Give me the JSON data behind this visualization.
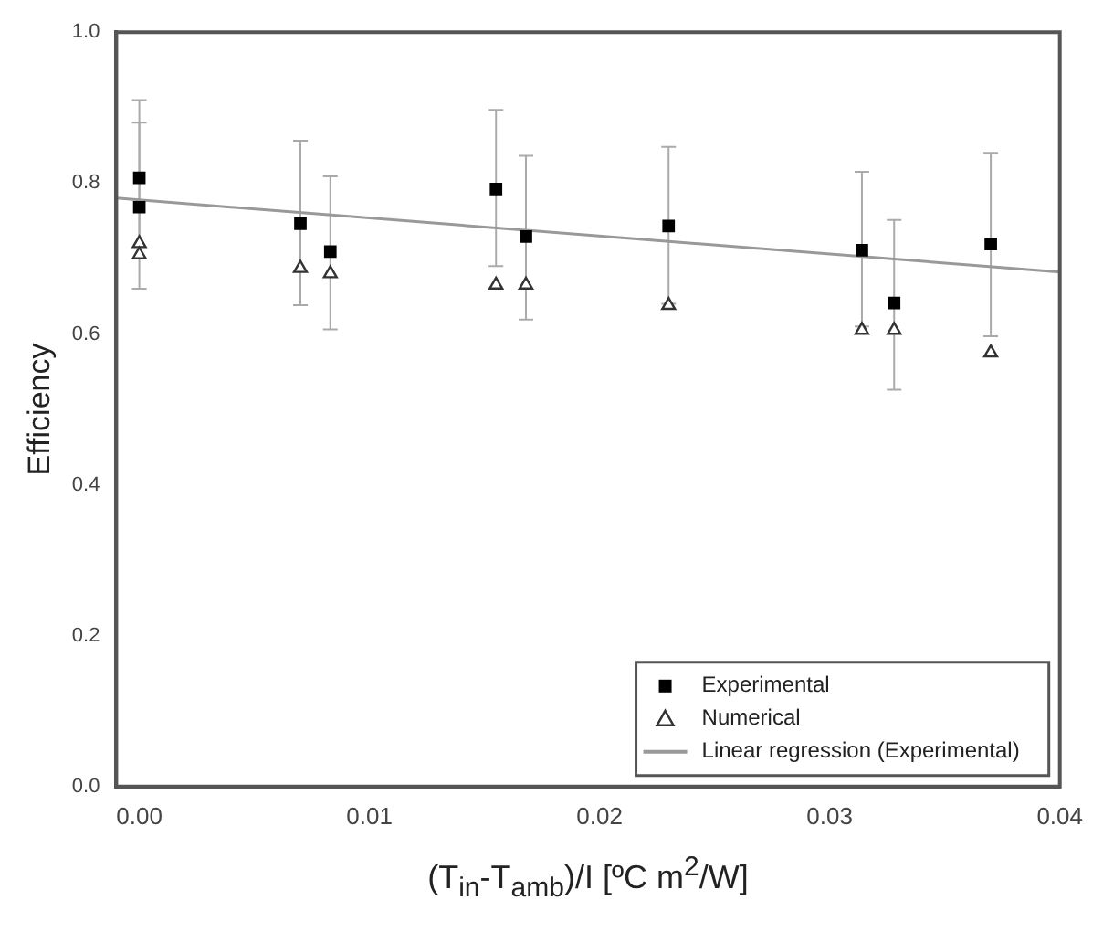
{
  "chart_data": {
    "type": "scatter",
    "xlabel": "(T$_{in}$-T$_{amb}$)/I [ºC m$^{2}$/W]",
    "ylabel": "Efficiency",
    "xlim": [
      -0.001,
      0.04
    ],
    "ylim": [
      0,
      1
    ],
    "xticks": [
      {
        "value": 0,
        "label": "0.00"
      },
      {
        "value": 0.01,
        "label": "0.01"
      },
      {
        "value": 0.02,
        "label": "0.02"
      },
      {
        "value": 0.03,
        "label": "0.03"
      },
      {
        "value": 0.04,
        "label": "0.04"
      }
    ],
    "yticks": [
      {
        "value": 0,
        "label": "0.0"
      },
      {
        "value": 0.2,
        "label": "0.2"
      },
      {
        "value": 0.4,
        "label": "0.4"
      },
      {
        "value": 0.6,
        "label": "0.6"
      },
      {
        "value": 0.8,
        "label": "0.8"
      },
      {
        "value": 1,
        "label": "1.0"
      }
    ],
    "grid": false,
    "legend": "bottom right",
    "series": [
      {
        "name": "Experimental",
        "marker": "square",
        "color": "#000000",
        "x": [
          0,
          0,
          0.007,
          0.0083,
          0.0155,
          0.0168,
          0.023,
          0.0314,
          0.0328,
          0.037
        ],
        "values": [
          0.807,
          0.768,
          0.746,
          0.709,
          0.792,
          0.729,
          0.743,
          0.711,
          0.641,
          0.719
        ],
        "errors": [
          [
            0.7,
            0.91
          ],
          [
            0.66,
            0.88
          ],
          [
            0.638,
            0.856
          ],
          [
            0.606,
            0.809
          ],
          [
            0.69,
            0.897
          ],
          [
            0.619,
            0.836
          ],
          [
            0.64,
            0.848
          ],
          [
            0.61,
            0.815
          ],
          [
            0.526,
            0.751
          ],
          [
            0.597,
            0.84
          ]
        ]
      },
      {
        "name": "Numerical",
        "marker": "triangle",
        "color": "#333333",
        "x": [
          0,
          0,
          0.007,
          0.0083,
          0.0155,
          0.0168,
          0.023,
          0.0314,
          0.0328,
          0.037
        ],
        "values": [
          0.72,
          0.705,
          0.687,
          0.68,
          0.665,
          0.665,
          0.638,
          0.605,
          0.605,
          0.575
        ]
      },
      {
        "name": "Linear regression (Experimental)",
        "type": "line",
        "marker": "none",
        "line_style": "solid",
        "color": "#999999",
        "x": [
          -0.001,
          0.04
        ],
        "values": [
          0.78,
          0.682
        ]
      }
    ]
  }
}
